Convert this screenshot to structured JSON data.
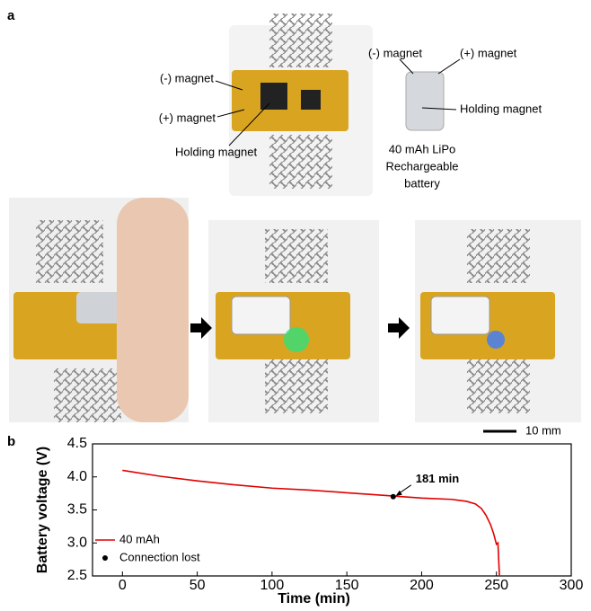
{
  "panel_a": {
    "label": "a",
    "board_labels": [
      "(-) magnet",
      "(+) magnet",
      "Holding magnet"
    ],
    "battery_labels": [
      "(-) magnet",
      "(+) magnet",
      "Holding magnet"
    ],
    "battery_caption": [
      "40 mAh LiPo",
      "Rechargeable",
      "battery"
    ],
    "scale_bar": "10 mm"
  },
  "chart_data": {
    "type": "line",
    "panel_label": "b",
    "x_label": "Time (min)",
    "y_label": "Battery voltage (V)",
    "xlim": [
      -20,
      300
    ],
    "xticks": [
      0,
      50,
      100,
      150,
      200,
      250,
      300
    ],
    "ylim": [
      2.5,
      4.5
    ],
    "yticks": [
      2.5,
      3.0,
      3.5,
      4.0,
      4.5
    ],
    "series": [
      {
        "name": "40 mAh",
        "color": "#e00000",
        "x": [
          0,
          25,
          50,
          75,
          100,
          125,
          150,
          175,
          200,
          220,
          230,
          236,
          240,
          243,
          246,
          248,
          250,
          251,
          252
        ],
        "values": [
          4.1,
          4.01,
          3.94,
          3.88,
          3.83,
          3.8,
          3.76,
          3.72,
          3.68,
          3.66,
          3.63,
          3.59,
          3.52,
          3.42,
          3.28,
          3.15,
          2.98,
          3.0,
          2.5
        ]
      },
      {
        "name": "Connection lost",
        "color": "#000000",
        "marker": "circle",
        "x": [
          181
        ],
        "values": [
          3.7
        ]
      }
    ],
    "annotation": "181 min"
  }
}
